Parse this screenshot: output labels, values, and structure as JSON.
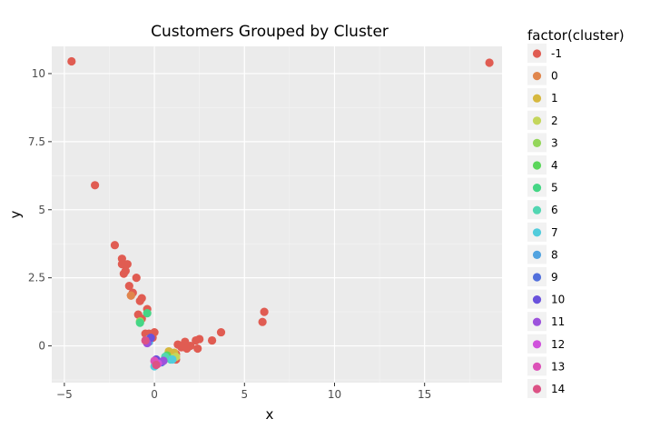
{
  "chart_data": {
    "type": "scatter",
    "title": "Customers Grouped by Cluster",
    "xlabel": "x",
    "ylabel": "y",
    "xlim": [
      -5.7,
      19.3
    ],
    "ylim": [
      -1.35,
      11.0
    ],
    "x_ticks": [
      -5,
      0,
      5,
      10,
      15
    ],
    "x_tick_labels": [
      "−5",
      "0",
      "5",
      "10",
      "15"
    ],
    "y_ticks": [
      0,
      2.5,
      5,
      7.5,
      10
    ],
    "y_tick_labels": [
      "0",
      "2.5",
      "5",
      "7.5",
      "10"
    ],
    "grid": true,
    "legend_position": "right",
    "legend_title": "factor(cluster)",
    "series": [
      {
        "name": "-1",
        "color": "#e05c52",
        "points": [
          [
            -4.6,
            10.45
          ],
          [
            18.6,
            10.4
          ],
          [
            -3.3,
            5.9
          ],
          [
            -2.2,
            3.7
          ],
          [
            -1.8,
            3.2
          ],
          [
            -1.8,
            3.0
          ],
          [
            -1.5,
            3.0
          ],
          [
            -1.7,
            2.65
          ],
          [
            -1.6,
            2.75
          ],
          [
            -1.0,
            2.5
          ],
          [
            -1.4,
            2.2
          ],
          [
            -1.2,
            1.95
          ],
          [
            -1.3,
            1.85
          ],
          [
            -0.7,
            1.75
          ],
          [
            -0.8,
            1.65
          ],
          [
            -0.4,
            1.35
          ],
          [
            -0.9,
            1.15
          ],
          [
            -0.7,
            1.0
          ],
          [
            -0.5,
            0.45
          ],
          [
            -0.3,
            0.45
          ],
          [
            0.0,
            0.5
          ],
          [
            -0.1,
            0.3
          ],
          [
            3.7,
            0.5
          ],
          [
            6.1,
            1.25
          ],
          [
            6.0,
            0.88
          ],
          [
            3.2,
            0.2
          ],
          [
            2.5,
            0.25
          ],
          [
            2.3,
            0.2
          ],
          [
            2.0,
            0.0
          ],
          [
            1.7,
            0.15
          ],
          [
            1.3,
            0.05
          ],
          [
            1.5,
            -0.05
          ],
          [
            1.8,
            -0.1
          ],
          [
            2.4,
            -0.1
          ],
          [
            1.2,
            -0.3
          ],
          [
            1.2,
            -0.5
          ]
        ]
      },
      {
        "name": "0",
        "color": "#e0864c",
        "points": [
          [
            -1.3,
            1.85
          ]
        ]
      },
      {
        "name": "1",
        "color": "#d6b83f",
        "points": [
          [
            0.8,
            -0.2
          ],
          [
            1.1,
            -0.25
          ],
          [
            0.9,
            -0.35
          ]
        ]
      },
      {
        "name": "2",
        "color": "#c4d65b",
        "points": [
          [
            1.2,
            -0.4
          ],
          [
            1.0,
            -0.45
          ]
        ]
      },
      {
        "name": "3",
        "color": "#94d65b",
        "points": [
          [
            -0.8,
            0.9
          ]
        ]
      },
      {
        "name": "4",
        "color": "#5bd65b",
        "points": [
          [
            0.7,
            -0.35
          ]
        ]
      },
      {
        "name": "5",
        "color": "#45d685",
        "points": [
          [
            -0.4,
            1.2
          ],
          [
            -0.8,
            0.85
          ]
        ]
      },
      {
        "name": "6",
        "color": "#52d6b2",
        "points": [
          [
            0.6,
            -0.4
          ],
          [
            0.9,
            -0.5
          ]
        ]
      },
      {
        "name": "7",
        "color": "#52ccdc",
        "points": [
          [
            0.0,
            -0.75
          ],
          [
            1.0,
            -0.5
          ],
          [
            -0.3,
            0.25
          ]
        ]
      },
      {
        "name": "8",
        "color": "#52a3e0",
        "points": [
          [
            -0.3,
            0.15
          ]
        ]
      },
      {
        "name": "9",
        "color": "#5270dc",
        "points": [
          [
            0.4,
            -0.6
          ]
        ]
      },
      {
        "name": "10",
        "color": "#6a52dc",
        "points": [
          [
            -0.2,
            0.3
          ],
          [
            0.1,
            -0.5
          ]
        ]
      },
      {
        "name": "11",
        "color": "#9c52dc",
        "points": [
          [
            0.5,
            -0.55
          ],
          [
            -0.4,
            0.1
          ]
        ]
      },
      {
        "name": "12",
        "color": "#d052dc",
        "points": [
          [
            0.2,
            -0.65
          ]
        ]
      },
      {
        "name": "13",
        "color": "#dc52b8",
        "points": [
          [
            0.0,
            -0.55
          ]
        ]
      },
      {
        "name": "14",
        "color": "#dc5285",
        "points": [
          [
            0.1,
            -0.7
          ],
          [
            -0.5,
            0.2
          ]
        ]
      }
    ]
  }
}
